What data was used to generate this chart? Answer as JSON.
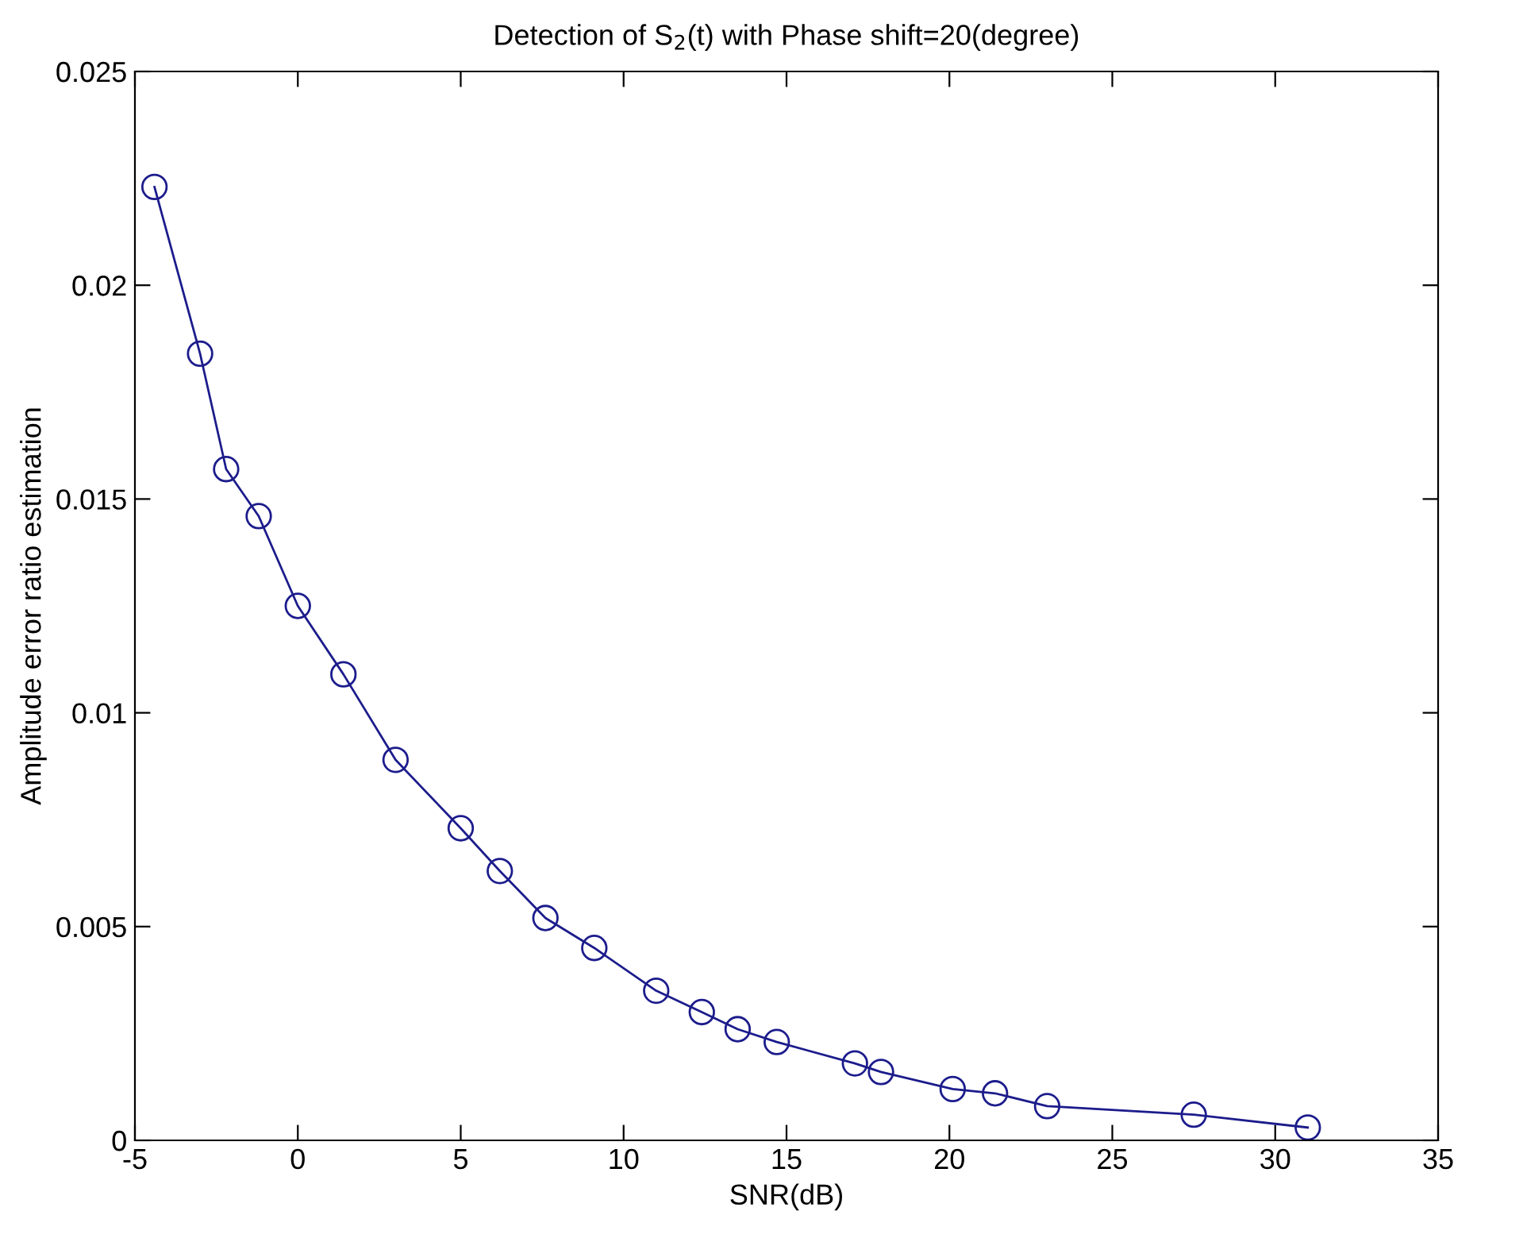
{
  "chart_data": {
    "type": "line",
    "title": "Detection of S$_{2}$(t) with Phase shift=20(degree)",
    "xlabel": "SNR(dB)",
    "ylabel": "Amplitude error ratio estimation",
    "series": [
      {
        "color": "#1c1c8c",
        "x": [
          -4.4,
          -3.0,
          -2.2,
          -1.2,
          0,
          1.4,
          3,
          5,
          6.2,
          7.6,
          9.1,
          11,
          12.4,
          13.5,
          14.7,
          17.1,
          17.9,
          20.1,
          21.4,
          23,
          27.5,
          31
        ],
        "values": [
          0.0223,
          0.0184,
          0.0157,
          0.0146,
          0.0125,
          0.0109,
          0.0089,
          0.0073,
          0.0063,
          0.0052,
          0.0045,
          0.0035,
          0.003,
          0.0026,
          0.0023,
          0.0018,
          0.0016,
          0.0012,
          0.0011,
          0.0008,
          0.0006,
          0.0003
        ]
      }
    ],
    "xlim": [
      -5,
      35
    ],
    "xticks": [
      -5,
      0,
      5,
      10,
      15,
      20,
      25,
      30,
      35
    ],
    "ylim": [
      0,
      0.025
    ],
    "yticks": [
      0,
      0.005,
      0.01,
      0.015,
      0.02,
      0.025
    ],
    "marker": "circle",
    "line_style": "solid",
    "grid": false,
    "legend": false
  }
}
